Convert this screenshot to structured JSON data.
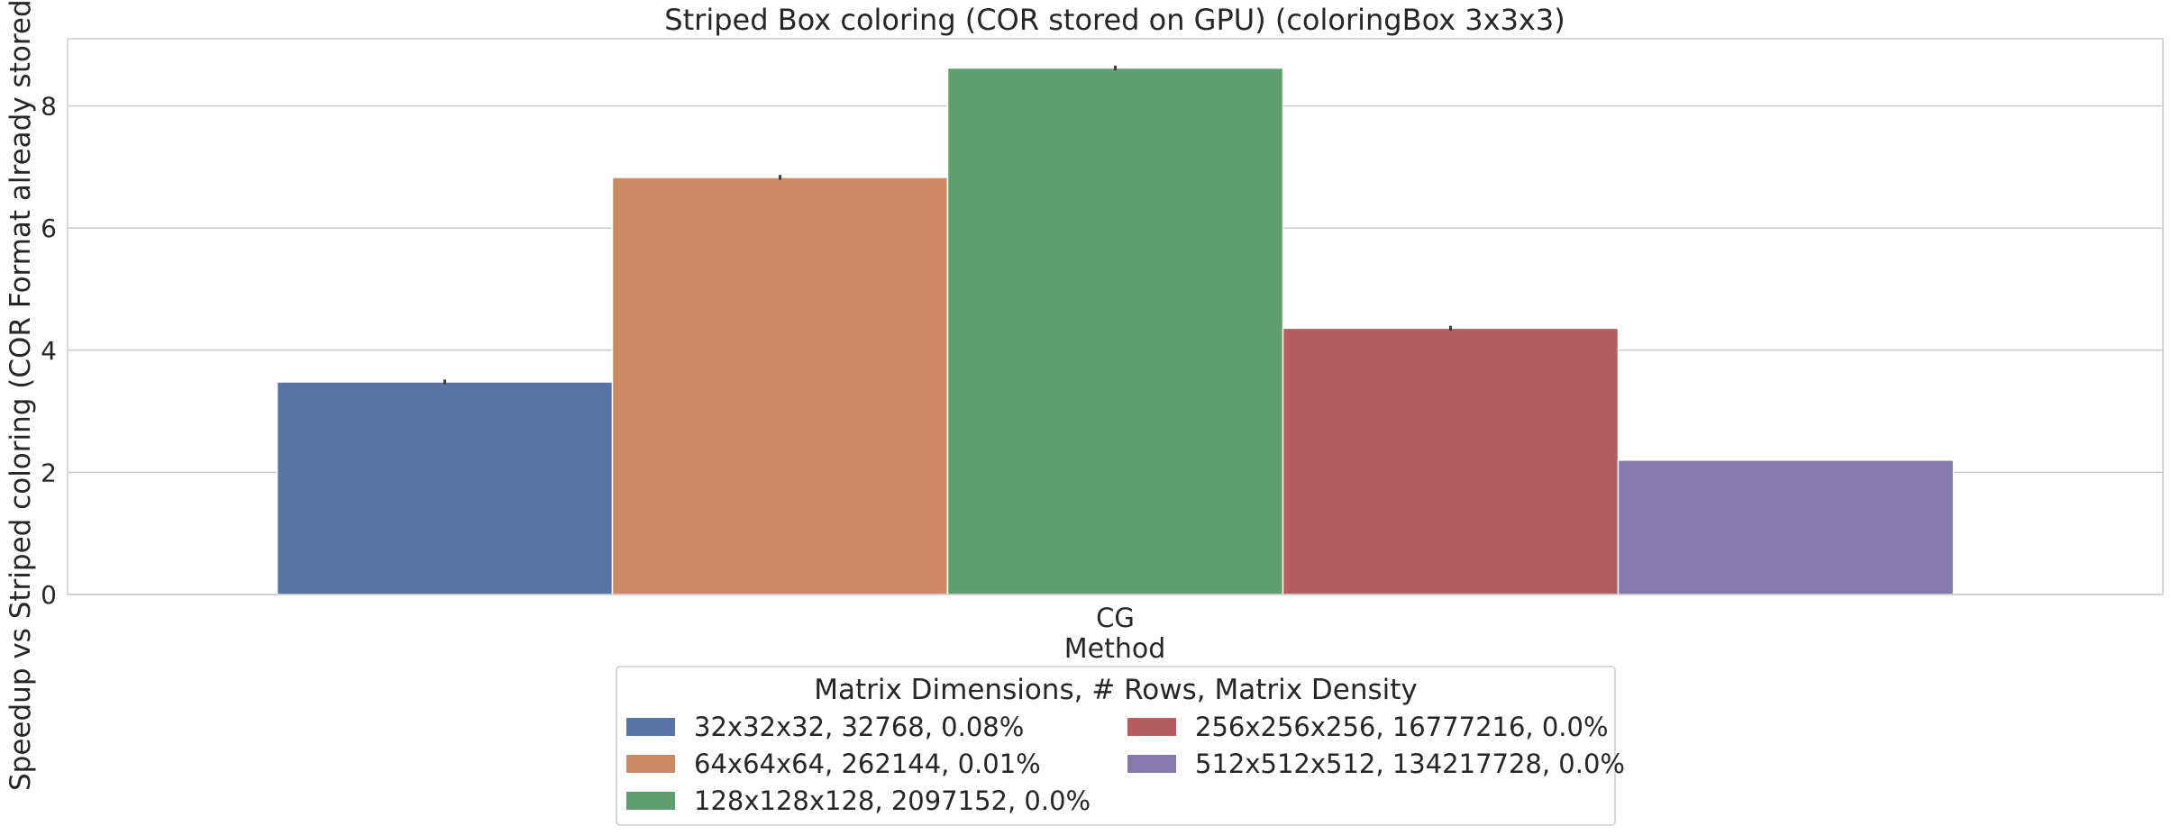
{
  "chart_data": {
    "type": "bar",
    "title": "Striped Box coloring (COR stored on GPU) (coloringBox 3x3x3)",
    "xlabel": "Method",
    "ylabel": "Speedup vs Striped coloring (COR Format already stored on GPU)",
    "categories": [
      "CG"
    ],
    "ylim": [
      0,
      9.1
    ],
    "yticks": [
      0,
      2,
      4,
      6,
      8
    ],
    "grid": true,
    "legend": {
      "title": "Matrix Dimensions, # Rows, Matrix Density",
      "placement": "bottom-center",
      "columns": 2
    },
    "series": [
      {
        "name": "32x32x32, 32768, 0.08%",
        "color": "#5874a6",
        "values": [
          3.48
        ],
        "err": [
          0.04
        ]
      },
      {
        "name": "64x64x64, 262144, 0.01%",
        "color": "#cc8963",
        "values": [
          6.83
        ],
        "err": [
          0.04
        ]
      },
      {
        "name": "128x128x128, 2097152, 0.0%",
        "color": "#5f9e6e",
        "values": [
          8.62
        ],
        "err": [
          0.04
        ]
      },
      {
        "name": "256x256x256, 16777216, 0.0%",
        "color": "#b55d60",
        "values": [
          4.36
        ],
        "err": [
          0.04
        ]
      },
      {
        "name": "512x512x512, 134217728, 0.0%",
        "color": "#857aab",
        "values": [
          2.2
        ],
        "err": [
          0.0
        ]
      }
    ]
  }
}
